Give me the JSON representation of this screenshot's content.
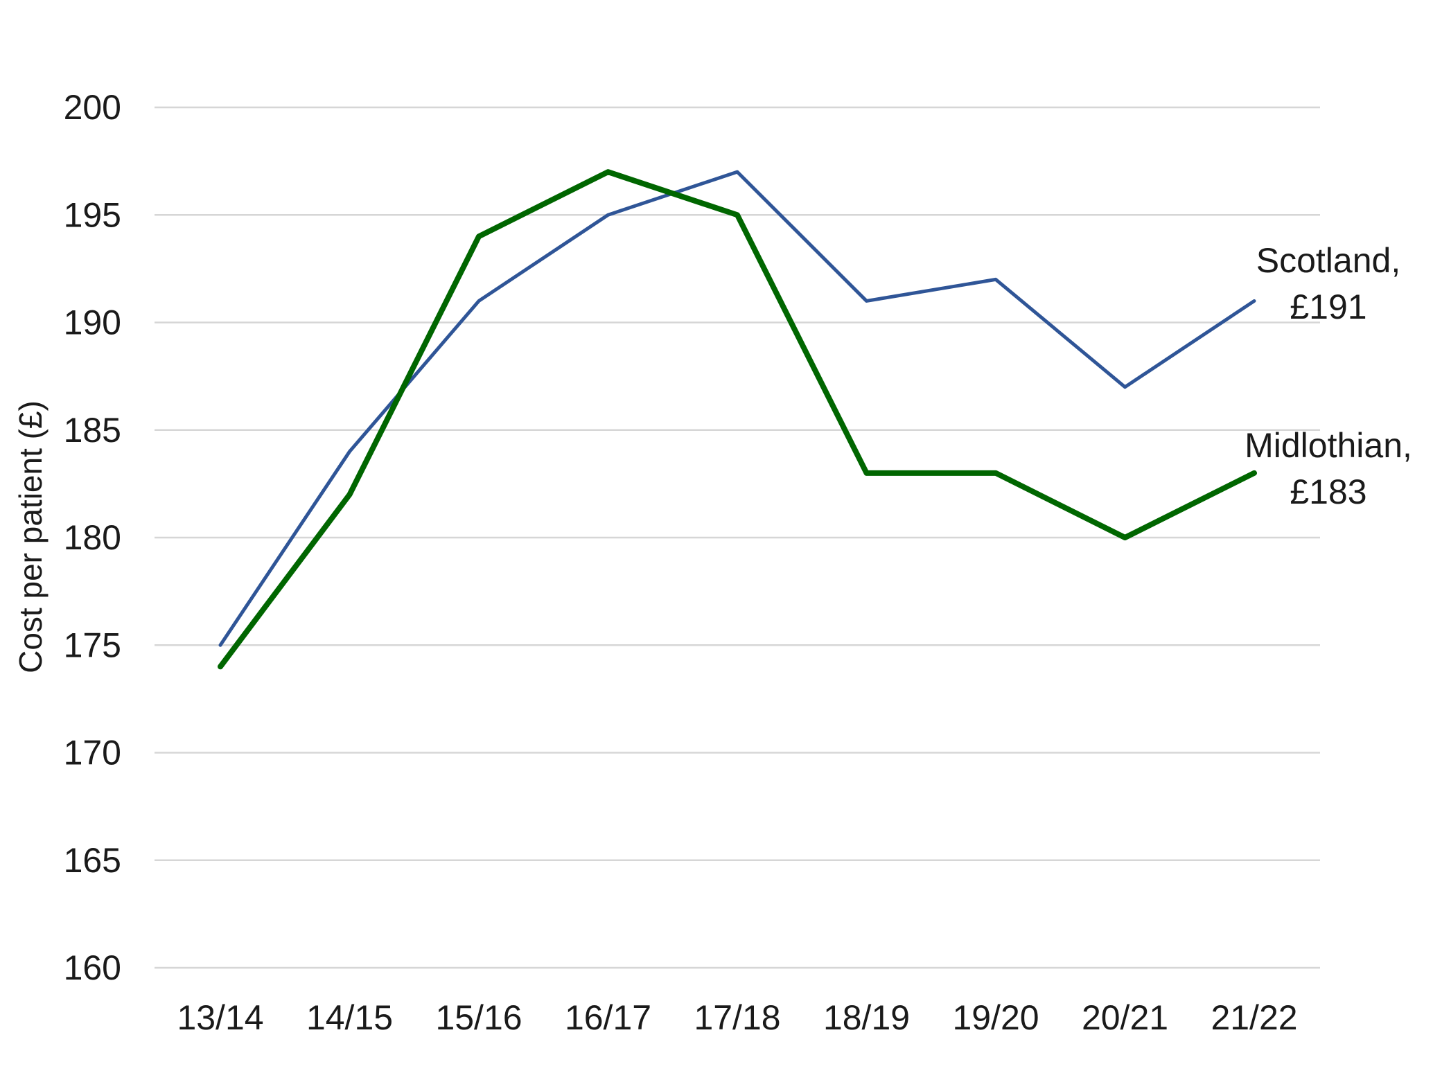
{
  "chart_data": {
    "type": "line",
    "title": "",
    "xlabel": "",
    "ylabel": "Cost per patient (£)",
    "categories": [
      "13/14",
      "14/15",
      "15/16",
      "16/17",
      "17/18",
      "18/19",
      "19/20",
      "20/21",
      "21/22"
    ],
    "ylim": [
      160,
      200
    ],
    "yticks": [
      160,
      165,
      170,
      175,
      180,
      185,
      190,
      195,
      200
    ],
    "grid": true,
    "legend": "none",
    "series": [
      {
        "name": "Scotland",
        "color": "#2F5597",
        "values": [
          175,
          184,
          191,
          195,
          197,
          191,
          192,
          187,
          191
        ],
        "end_label": [
          "Scotland,",
          "£191"
        ]
      },
      {
        "name": "Midlothian",
        "color": "#006600",
        "values": [
          174,
          182,
          194,
          197,
          195,
          183,
          183,
          180,
          183
        ],
        "end_label": [
          "Midlothian,",
          "£183"
        ]
      }
    ]
  }
}
